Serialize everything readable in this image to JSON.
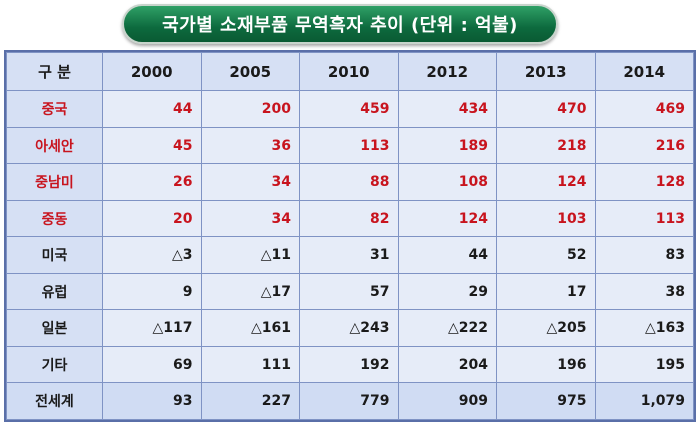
{
  "title": "국가별 소재부품 무역흑자 추이 (단위 : 억불)",
  "colors": {
    "title_bg": "#0d6a3e",
    "highlight_text": "#c8141e",
    "table_bg": "#e6ecf8"
  },
  "table": {
    "header": [
      "구 분",
      "2000",
      "2005",
      "2010",
      "2012",
      "2013",
      "2014"
    ],
    "rows": [
      {
        "label": "중국",
        "values": [
          "44",
          "200",
          "459",
          "434",
          "470",
          "469"
        ],
        "highlight": true
      },
      {
        "label": "아세안",
        "values": [
          "45",
          "36",
          "113",
          "189",
          "218",
          "216"
        ],
        "highlight": true
      },
      {
        "label": "중남미",
        "values": [
          "26",
          "34",
          "88",
          "108",
          "124",
          "128"
        ],
        "highlight": true
      },
      {
        "label": "중동",
        "values": [
          "20",
          "34",
          "82",
          "124",
          "103",
          "113"
        ],
        "highlight": true
      },
      {
        "label": "미국",
        "values": [
          "△3",
          "△11",
          "31",
          "44",
          "52",
          "83"
        ],
        "highlight": false
      },
      {
        "label": "유럽",
        "values": [
          "9",
          "△17",
          "57",
          "29",
          "17",
          "38"
        ],
        "highlight": false
      },
      {
        "label": "일본",
        "values": [
          "△117",
          "△161",
          "△243",
          "△222",
          "△205",
          "△163"
        ],
        "highlight": false
      },
      {
        "label": "기타",
        "values": [
          "69",
          "111",
          "192",
          "204",
          "196",
          "195"
        ],
        "highlight": false
      },
      {
        "label": "전세계",
        "values": [
          "93",
          "227",
          "779",
          "909",
          "975",
          "1,079"
        ],
        "highlight": false
      }
    ]
  }
}
